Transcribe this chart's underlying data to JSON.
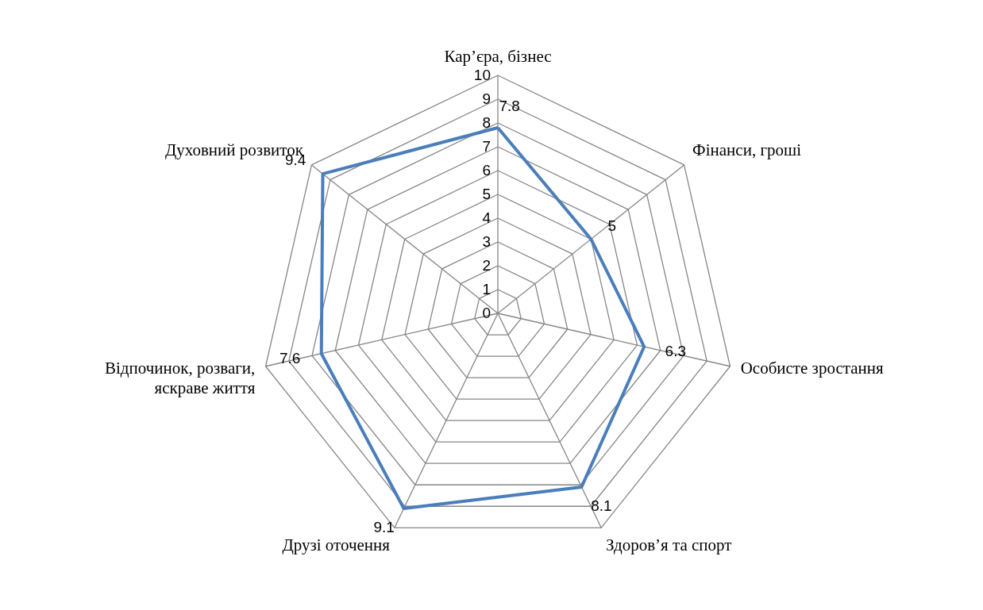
{
  "chart_data": {
    "type": "radar",
    "categories": [
      "Кар’єра, бізнес",
      "Фінанси, гроші",
      "Особисте зростання",
      "Здоров’я та спорт",
      "Друзі оточення",
      "Відпочинок, розваги, яскраве життя",
      "Духовний розвиток"
    ],
    "series": [
      {
        "color": "#4a7ebb",
        "values": [
          7.8,
          5,
          6.3,
          8.1,
          9.1,
          7.6,
          9.4
        ]
      }
    ],
    "ylim": [
      0,
      10
    ],
    "yticks": [
      0,
      1,
      2,
      3,
      4,
      5,
      6,
      7,
      8,
      9,
      10
    ],
    "grid": true,
    "data_labels": true
  }
}
